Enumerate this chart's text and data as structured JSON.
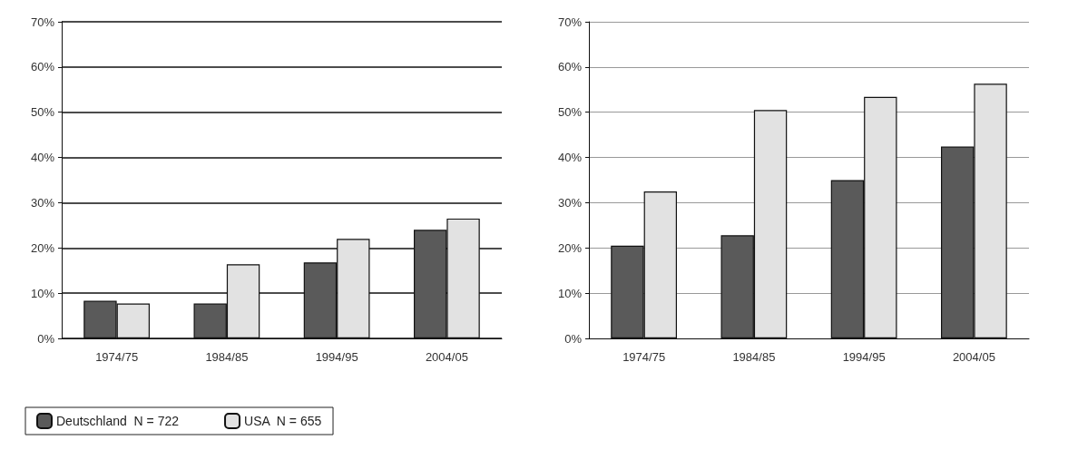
{
  "chart_data": [
    {
      "type": "bar",
      "categories": [
        "1974/75",
        "1984/85",
        "1994/95",
        "2004/05"
      ],
      "series": [
        {
          "name": "Deutschland  N = 722",
          "color": "#5a5a5a",
          "values": [
            8.3,
            7.7,
            16.8,
            24
          ]
        },
        {
          "name": "USA  N = 655",
          "color": "#e2e2e2",
          "values": [
            7.7,
            16.4,
            22,
            26.5
          ]
        }
      ],
      "ylim": [
        0,
        70
      ],
      "yticks": [
        {
          "value": 0,
          "label": "0%"
        },
        {
          "value": 10,
          "label": "10%"
        },
        {
          "value": 20,
          "label": "20%"
        },
        {
          "value": 30,
          "label": "30%"
        },
        {
          "value": 40,
          "label": "40%"
        },
        {
          "value": 50,
          "label": "50%"
        },
        {
          "value": 60,
          "label": "60%"
        },
        {
          "value": 70,
          "label": "70%"
        }
      ],
      "grid": "y",
      "legend": "bottom left"
    },
    {
      "type": "bar",
      "categories": [
        "1974/75",
        "1984/85",
        "1994/95",
        "2004/05"
      ],
      "series": [
        {
          "color": "#5a5a5a",
          "values": [
            20.5,
            22.8,
            35,
            42.4
          ]
        },
        {
          "color": "#e2e2e2",
          "values": [
            32.5,
            50.5,
            53.4,
            56.3
          ]
        }
      ],
      "ylim": [
        0,
        70
      ],
      "yticks": [
        {
          "value": 0,
          "label": "0%"
        },
        {
          "value": 10,
          "label": "10%"
        },
        {
          "value": 20,
          "label": "20%"
        },
        {
          "value": 30,
          "label": "30%"
        },
        {
          "value": 40,
          "label": "40%"
        },
        {
          "value": 50,
          "label": "50%"
        },
        {
          "value": 60,
          "label": "60%"
        },
        {
          "value": 70,
          "label": "70%"
        }
      ],
      "grid": "y",
      "legend": false
    }
  ]
}
